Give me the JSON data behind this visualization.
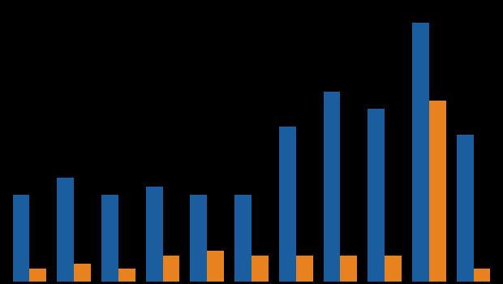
{
  "blue_values": [
    10,
    12,
    10,
    11,
    10,
    10,
    18,
    22,
    20,
    30,
    17
  ],
  "orange_values": [
    1.5,
    2,
    1.5,
    3,
    3.5,
    3,
    3,
    3,
    3,
    21,
    1.5
  ],
  "blue_color": "#1B5EA0",
  "orange_color": "#E8821E",
  "background_color": "#000000",
  "bar_width": 0.38,
  "ylim": [
    0,
    32
  ],
  "n_groups": 11
}
